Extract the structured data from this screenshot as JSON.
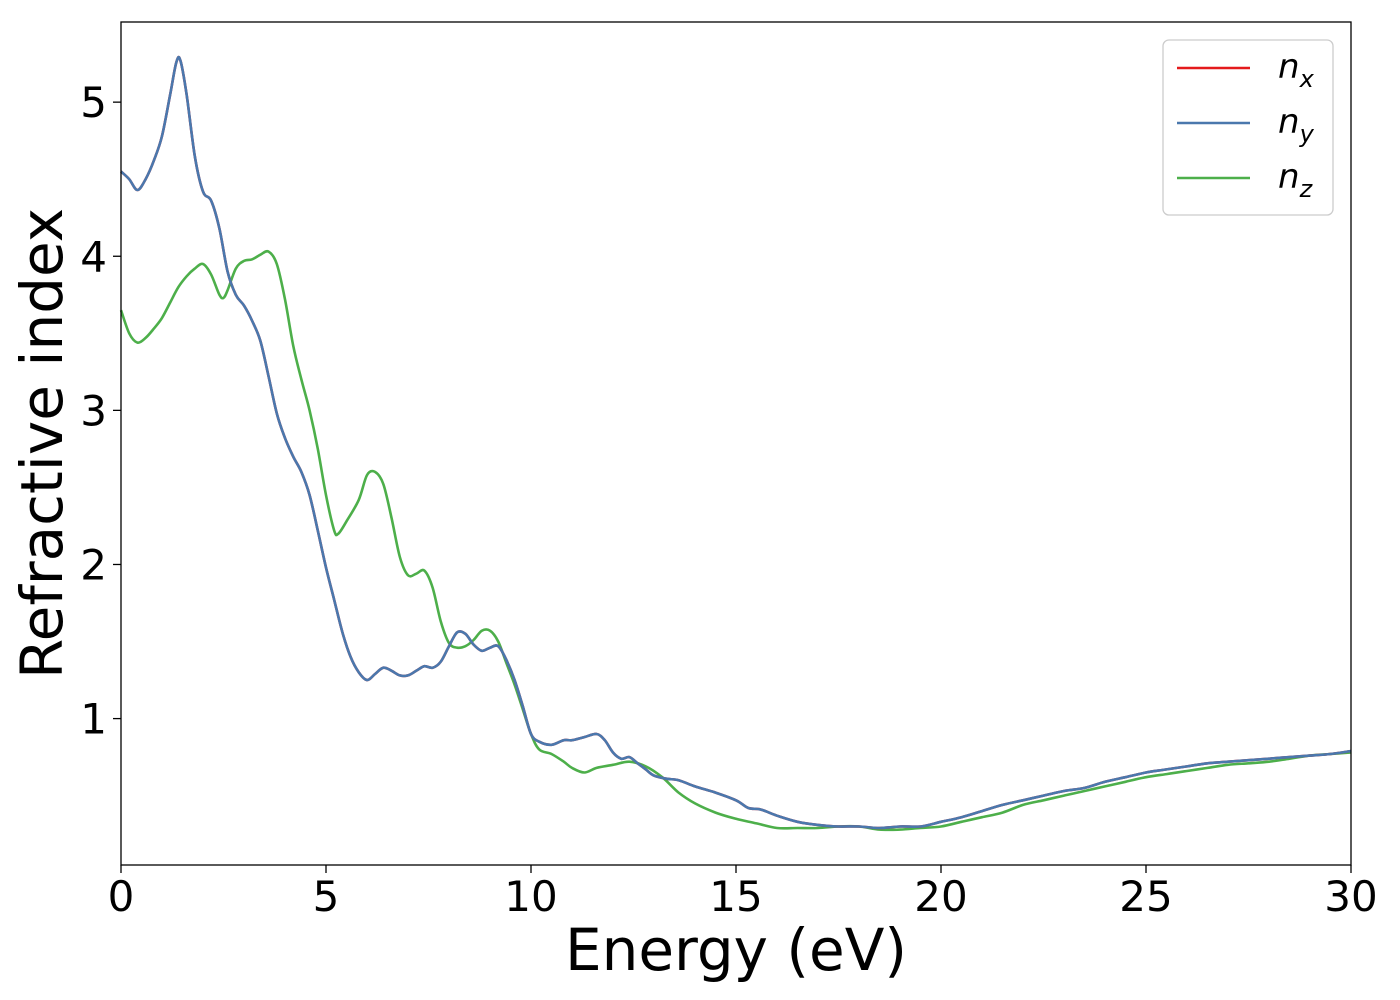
{
  "chart_data": {
    "type": "line",
    "title": "",
    "xlabel": "Energy (eV)",
    "ylabel": "Refractive index",
    "xlim": [
      0,
      30
    ],
    "ylim": [
      0.05,
      5.52
    ],
    "xticks": [
      0,
      5,
      10,
      15,
      20,
      25,
      30
    ],
    "xtick_labels": [
      "0",
      "5",
      "10",
      "15",
      "20",
      "25",
      "30"
    ],
    "yticks": [
      1,
      2,
      3,
      4,
      5
    ],
    "ytick_labels": [
      "1",
      "2",
      "3",
      "4",
      "5"
    ],
    "grid": false,
    "legend_position": "top-right",
    "series": [
      {
        "name": "n_x",
        "legend_main": "n",
        "legend_sub": "x",
        "color": "#e41a1c",
        "x": [
          0,
          0.2,
          0.4,
          0.6,
          0.8,
          1.0,
          1.2,
          1.35,
          1.45,
          1.6,
          1.8,
          2.0,
          2.2,
          2.4,
          2.6,
          2.8,
          3.0,
          3.2,
          3.4,
          3.6,
          3.8,
          4.0,
          4.2,
          4.4,
          4.6,
          4.8,
          5.0,
          5.2,
          5.4,
          5.6,
          5.8,
          6.0,
          6.2,
          6.4,
          6.6,
          6.8,
          7.0,
          7.2,
          7.4,
          7.6,
          7.8,
          8.0,
          8.2,
          8.4,
          8.6,
          8.8,
          9.0,
          9.2,
          9.4,
          9.6,
          9.8,
          10.0,
          10.2,
          10.5,
          10.8,
          11.0,
          11.3,
          11.6,
          11.8,
          12.0,
          12.2,
          12.4,
          12.6,
          12.8,
          13.0,
          13.3,
          13.6,
          14.0,
          14.5,
          15.0,
          15.3,
          15.6,
          16.0,
          16.5,
          17.0,
          17.5,
          18.0,
          18.5,
          19.0,
          19.5,
          20.0,
          20.5,
          21.0,
          21.5,
          22.0,
          22.5,
          23.0,
          23.5,
          24.0,
          24.5,
          25.0,
          25.5,
          26.0,
          26.5,
          27.0,
          27.5,
          28.0,
          28.5,
          29.0,
          29.5,
          30.0
        ],
        "y": [
          4.55,
          4.5,
          4.43,
          4.5,
          4.62,
          4.78,
          5.05,
          5.26,
          5.27,
          5.05,
          4.65,
          4.42,
          4.36,
          4.18,
          3.9,
          3.75,
          3.68,
          3.58,
          3.45,
          3.22,
          2.98,
          2.82,
          2.7,
          2.6,
          2.45,
          2.22,
          1.98,
          1.77,
          1.56,
          1.4,
          1.3,
          1.25,
          1.29,
          1.33,
          1.31,
          1.28,
          1.28,
          1.31,
          1.34,
          1.33,
          1.37,
          1.47,
          1.56,
          1.55,
          1.48,
          1.44,
          1.46,
          1.47,
          1.38,
          1.25,
          1.08,
          0.9,
          0.85,
          0.83,
          0.86,
          0.86,
          0.88,
          0.9,
          0.86,
          0.78,
          0.74,
          0.75,
          0.71,
          0.67,
          0.63,
          0.61,
          0.6,
          0.56,
          0.52,
          0.47,
          0.42,
          0.41,
          0.37,
          0.33,
          0.31,
          0.3,
          0.3,
          0.29,
          0.3,
          0.3,
          0.33,
          0.36,
          0.4,
          0.44,
          0.47,
          0.5,
          0.53,
          0.55,
          0.59,
          0.62,
          0.65,
          0.67,
          0.69,
          0.71,
          0.72,
          0.73,
          0.74,
          0.75,
          0.76,
          0.77,
          0.79
        ]
      },
      {
        "name": "n_y",
        "legend_main": "n",
        "legend_sub": "y",
        "color": "#4a78ad",
        "x": [
          0,
          0.2,
          0.4,
          0.6,
          0.8,
          1.0,
          1.2,
          1.35,
          1.45,
          1.6,
          1.8,
          2.0,
          2.2,
          2.4,
          2.6,
          2.8,
          3.0,
          3.2,
          3.4,
          3.6,
          3.8,
          4.0,
          4.2,
          4.4,
          4.6,
          4.8,
          5.0,
          5.2,
          5.4,
          5.6,
          5.8,
          6.0,
          6.2,
          6.4,
          6.6,
          6.8,
          7.0,
          7.2,
          7.4,
          7.6,
          7.8,
          8.0,
          8.2,
          8.4,
          8.6,
          8.8,
          9.0,
          9.2,
          9.4,
          9.6,
          9.8,
          10.0,
          10.2,
          10.5,
          10.8,
          11.0,
          11.3,
          11.6,
          11.8,
          12.0,
          12.2,
          12.4,
          12.6,
          12.8,
          13.0,
          13.3,
          13.6,
          14.0,
          14.5,
          15.0,
          15.3,
          15.6,
          16.0,
          16.5,
          17.0,
          17.5,
          18.0,
          18.5,
          19.0,
          19.5,
          20.0,
          20.5,
          21.0,
          21.5,
          22.0,
          22.5,
          23.0,
          23.5,
          24.0,
          24.5,
          25.0,
          25.5,
          26.0,
          26.5,
          27.0,
          27.5,
          28.0,
          28.5,
          29.0,
          29.5,
          30.0
        ],
        "y": [
          4.55,
          4.5,
          4.43,
          4.5,
          4.62,
          4.78,
          5.05,
          5.26,
          5.27,
          5.05,
          4.65,
          4.42,
          4.36,
          4.18,
          3.9,
          3.75,
          3.68,
          3.58,
          3.45,
          3.22,
          2.98,
          2.82,
          2.7,
          2.6,
          2.45,
          2.22,
          1.98,
          1.77,
          1.56,
          1.4,
          1.3,
          1.25,
          1.29,
          1.33,
          1.31,
          1.28,
          1.28,
          1.31,
          1.34,
          1.33,
          1.37,
          1.47,
          1.56,
          1.55,
          1.48,
          1.44,
          1.46,
          1.47,
          1.38,
          1.25,
          1.08,
          0.9,
          0.85,
          0.83,
          0.86,
          0.86,
          0.88,
          0.9,
          0.86,
          0.78,
          0.74,
          0.75,
          0.71,
          0.67,
          0.63,
          0.61,
          0.6,
          0.56,
          0.52,
          0.47,
          0.42,
          0.41,
          0.37,
          0.33,
          0.31,
          0.3,
          0.3,
          0.29,
          0.3,
          0.3,
          0.33,
          0.36,
          0.4,
          0.44,
          0.47,
          0.5,
          0.53,
          0.55,
          0.59,
          0.62,
          0.65,
          0.67,
          0.69,
          0.71,
          0.72,
          0.73,
          0.74,
          0.75,
          0.76,
          0.77,
          0.79
        ]
      },
      {
        "name": "n_z",
        "legend_main": "n",
        "legend_sub": "z",
        "color": "#4daf4a",
        "x": [
          0,
          0.2,
          0.4,
          0.6,
          0.8,
          1.0,
          1.2,
          1.4,
          1.6,
          1.8,
          2.0,
          2.2,
          2.4,
          2.5,
          2.6,
          2.8,
          3.0,
          3.2,
          3.4,
          3.6,
          3.8,
          4.0,
          4.2,
          4.4,
          4.6,
          4.8,
          5.0,
          5.2,
          5.3,
          5.5,
          5.8,
          6.0,
          6.2,
          6.4,
          6.6,
          6.8,
          7.0,
          7.2,
          7.4,
          7.6,
          7.8,
          8.0,
          8.2,
          8.4,
          8.6,
          8.8,
          9.0,
          9.2,
          9.4,
          9.6,
          9.8,
          10.0,
          10.2,
          10.5,
          10.8,
          11.0,
          11.3,
          11.6,
          12.0,
          12.4,
          12.8,
          13.2,
          13.6,
          14.0,
          14.5,
          15.0,
          15.5,
          16.0,
          16.5,
          17.0,
          17.5,
          18.0,
          18.5,
          19.0,
          19.5,
          20.0,
          20.5,
          21.0,
          21.5,
          22.0,
          22.5,
          23.0,
          23.5,
          24.0,
          24.5,
          25.0,
          25.5,
          26.0,
          26.5,
          27.0,
          27.5,
          28.0,
          28.5,
          29.0,
          29.5,
          30.0
        ],
        "y": [
          3.65,
          3.5,
          3.44,
          3.47,
          3.53,
          3.6,
          3.7,
          3.8,
          3.87,
          3.92,
          3.95,
          3.88,
          3.75,
          3.73,
          3.78,
          3.92,
          3.97,
          3.98,
          4.01,
          4.03,
          3.95,
          3.72,
          3.42,
          3.2,
          3.0,
          2.75,
          2.45,
          2.22,
          2.2,
          2.28,
          2.42,
          2.58,
          2.6,
          2.52,
          2.3,
          2.05,
          1.93,
          1.94,
          1.96,
          1.85,
          1.63,
          1.49,
          1.46,
          1.47,
          1.51,
          1.57,
          1.57,
          1.5,
          1.36,
          1.22,
          1.06,
          0.9,
          0.8,
          0.77,
          0.72,
          0.68,
          0.65,
          0.68,
          0.7,
          0.72,
          0.69,
          0.62,
          0.52,
          0.45,
          0.39,
          0.35,
          0.32,
          0.29,
          0.29,
          0.29,
          0.3,
          0.3,
          0.28,
          0.28,
          0.29,
          0.3,
          0.33,
          0.36,
          0.39,
          0.44,
          0.47,
          0.5,
          0.53,
          0.56,
          0.59,
          0.62,
          0.64,
          0.66,
          0.68,
          0.7,
          0.71,
          0.72,
          0.74,
          0.76,
          0.77,
          0.78
        ]
      }
    ]
  }
}
